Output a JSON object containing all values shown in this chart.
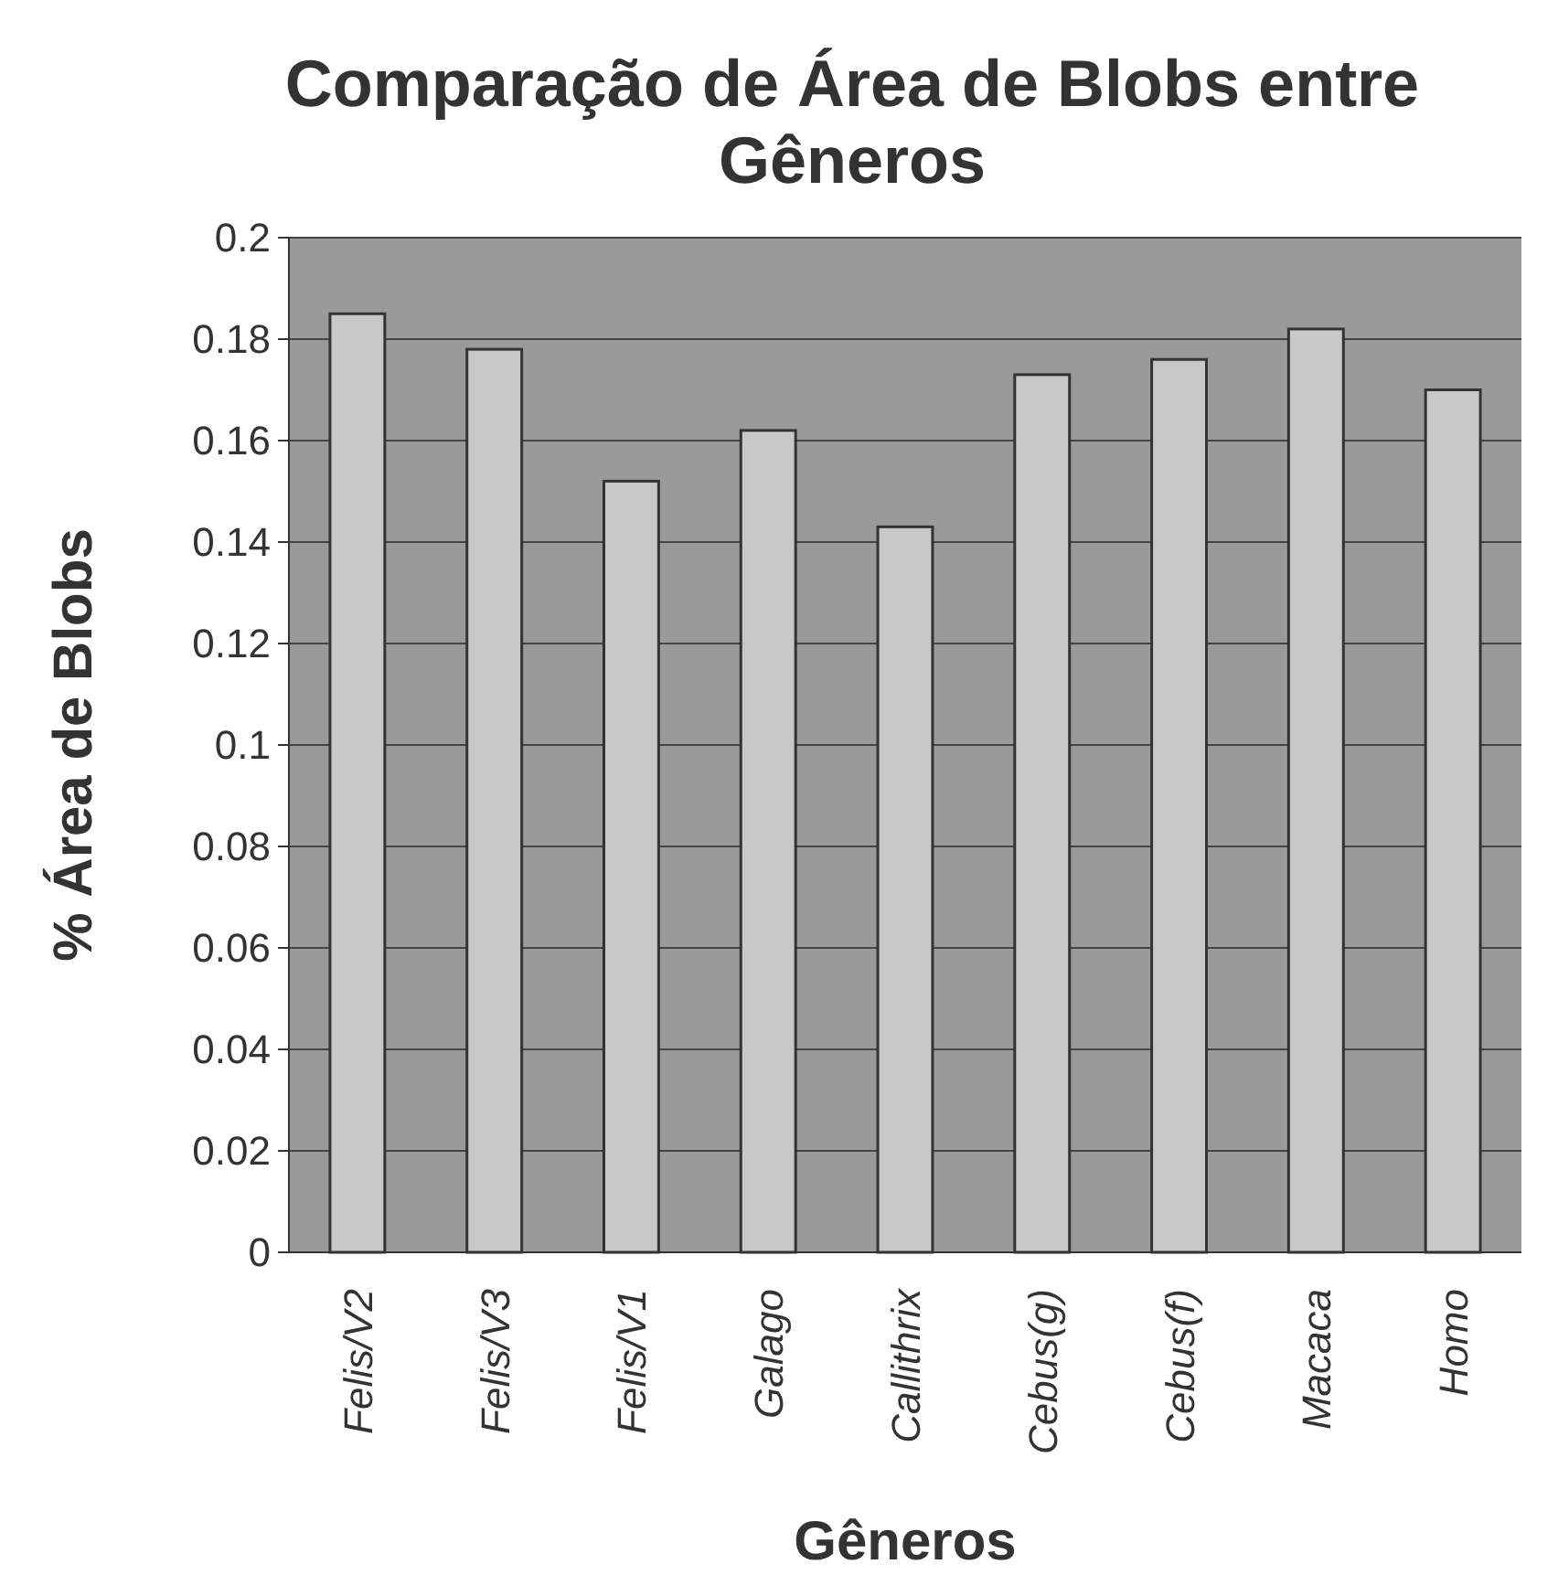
{
  "chart_data": {
    "type": "bar",
    "title": "Comparação de Área de Blobs entre Gêneros",
    "xlabel": "Gêneros",
    "ylabel": "% Área de Blobs",
    "categories": [
      "Felis/V2",
      "Felis/V3",
      "Felis/V1",
      "Galago",
      "Callithrix",
      "Cebus(g)",
      "Cebus(f)",
      "Macaca",
      "Homo"
    ],
    "values": [
      0.185,
      0.178,
      0.152,
      0.162,
      0.143,
      0.173,
      0.176,
      0.182,
      0.17
    ],
    "color": "#c8c8c8",
    "ylim": [
      0,
      0.2
    ],
    "yticks": [
      0,
      0.02,
      0.04,
      0.06,
      0.08,
      0.1,
      0.12,
      0.14,
      0.16,
      0.18,
      0.2
    ],
    "grid": "y"
  }
}
